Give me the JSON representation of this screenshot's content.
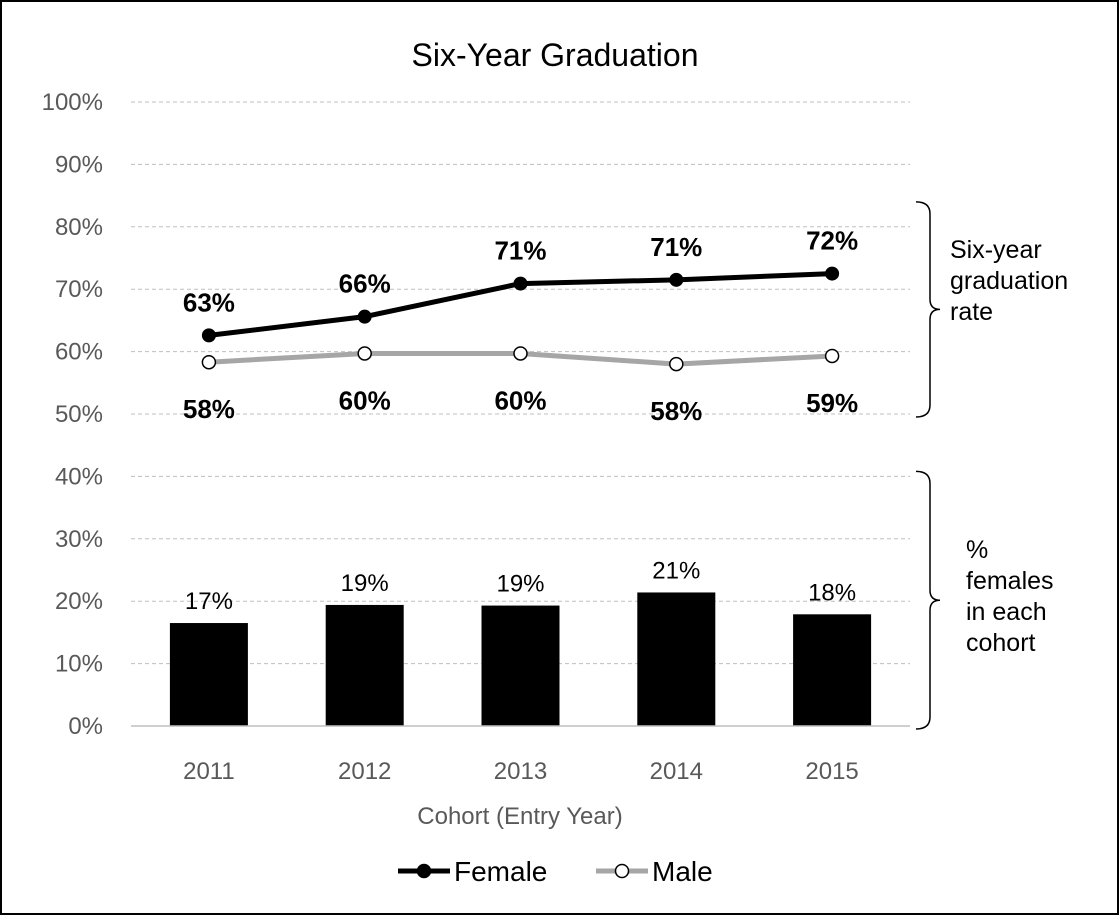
{
  "chart_data": {
    "type": "line",
    "title": "Six-Year Graduation",
    "xlabel": "Cohort (Entry Year)",
    "ylabel": "",
    "ylim": [
      0,
      1
    ],
    "y_ticks": [
      "0%",
      "10%",
      "20%",
      "30%",
      "40%",
      "50%",
      "60%",
      "70%",
      "80%",
      "90%",
      "100%"
    ],
    "y_tick_values": [
      0,
      0.1,
      0.2,
      0.3,
      0.4,
      0.5,
      0.6,
      0.7,
      0.8,
      0.9,
      1.0
    ],
    "grid": true,
    "legend_position": "bottom",
    "categories": [
      "2011",
      "2012",
      "2013",
      "2014",
      "2015"
    ],
    "series": [
      {
        "name": "Female",
        "kind": "line",
        "marker": "filled-circle",
        "color": "#000000",
        "values": [
          0.626,
          0.656,
          0.709,
          0.715,
          0.725
        ],
        "labels": [
          "63%",
          "66%",
          "71%",
          "71%",
          "72%"
        ]
      },
      {
        "name": "Male",
        "kind": "line",
        "marker": "open-circle",
        "color": "#a6a6a6",
        "values": [
          0.583,
          0.597,
          0.597,
          0.58,
          0.593
        ],
        "labels": [
          "58%",
          "60%",
          "60%",
          "58%",
          "59%"
        ]
      },
      {
        "kind": "bar",
        "color": "#000000",
        "values": [
          0.165,
          0.194,
          0.193,
          0.214,
          0.179
        ],
        "labels": [
          "17%",
          "19%",
          "19%",
          "21%",
          "18%"
        ]
      }
    ],
    "annotations": [
      {
        "text": "Six-year graduation rate",
        "lines": [
          "Six-year",
          "graduation",
          "rate"
        ],
        "range": [
          0.5,
          0.84
        ]
      },
      {
        "text": "% females in each cohort",
        "lines": [
          "%",
          "females",
          "in each",
          "cohort"
        ],
        "range": [
          0,
          0.4
        ]
      }
    ]
  }
}
